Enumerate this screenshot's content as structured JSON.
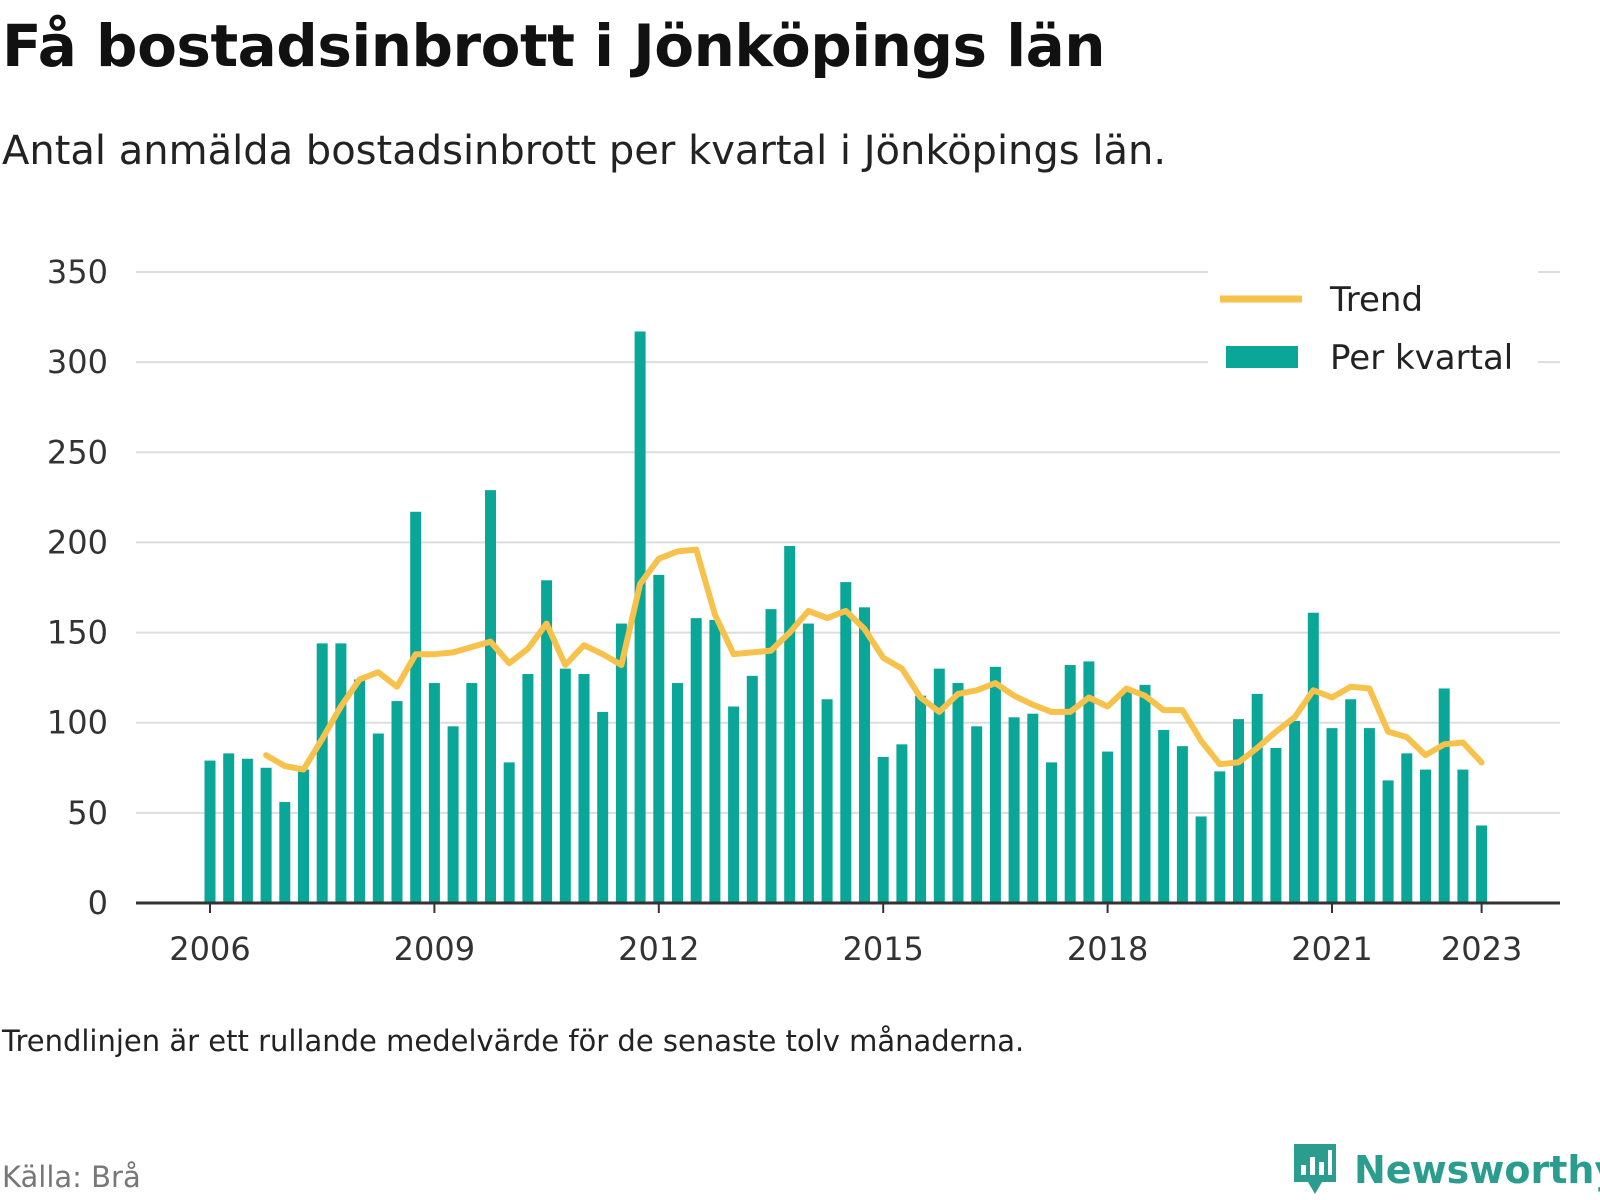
{
  "title": "Få bostadsinbrott i Jönköpings län",
  "subtitle": "Antal anmälda bostadsinbrott per kvartal i Jönköpings län.",
  "note": "Trendlinjen är ett rullande medelvärde för de senaste tolv månaderna.",
  "source": "Källa: Brå",
  "brand": "Newsworthy",
  "colors": {
    "bar": "#0aa698",
    "trend": "#f7c24c",
    "grid": "#dddddd",
    "axis": "#333333",
    "brand": "#2a9d8f"
  },
  "chart_data": {
    "type": "bar",
    "ylim": [
      0,
      350
    ],
    "yticks": [
      0,
      50,
      100,
      150,
      200,
      250,
      300,
      350
    ],
    "xticks": [
      {
        "label": "2006",
        "quarter_index": 0
      },
      {
        "label": "2009",
        "quarter_index": 12
      },
      {
        "label": "2012",
        "quarter_index": 24
      },
      {
        "label": "2015",
        "quarter_index": 36
      },
      {
        "label": "2018",
        "quarter_index": 48
      },
      {
        "label": "2021",
        "quarter_index": 60
      },
      {
        "label": "2023",
        "quarter_index": 68
      }
    ],
    "grid": true,
    "legend_position": "top-right",
    "series": [
      {
        "name": "Per kvartal",
        "type": "bar",
        "values": [
          79,
          83,
          80,
          75,
          56,
          74,
          144,
          144,
          124,
          94,
          112,
          217,
          122,
          98,
          122,
          229,
          78,
          127,
          179,
          130,
          127,
          106,
          155,
          317,
          182,
          122,
          158,
          157,
          109,
          126,
          163,
          198,
          155,
          113,
          178,
          164,
          81,
          88,
          115,
          130,
          122,
          98,
          131,
          103,
          105,
          78,
          132,
          134,
          84,
          118,
          121,
          96,
          87,
          48,
          73,
          102,
          116,
          86,
          101,
          161,
          97,
          113,
          97,
          68,
          83,
          74,
          119,
          74,
          43
        ]
      },
      {
        "name": "Trend",
        "type": "line",
        "start_index": 3,
        "values": [
          82,
          76,
          74,
          91,
          109,
          124,
          128,
          120,
          138,
          138,
          139,
          142,
          145,
          133,
          141,
          155,
          132,
          143,
          138,
          132,
          177,
          191,
          195,
          196,
          160,
          138,
          139,
          140,
          150,
          162,
          158,
          162,
          152,
          136,
          130,
          114,
          106,
          116,
          118,
          122,
          115,
          110,
          106,
          106,
          114,
          109,
          119,
          115,
          107,
          107,
          90,
          77,
          78,
          86,
          95,
          103,
          118,
          114,
          120,
          119,
          95,
          92,
          82,
          88,
          89,
          78
        ]
      }
    ]
  }
}
